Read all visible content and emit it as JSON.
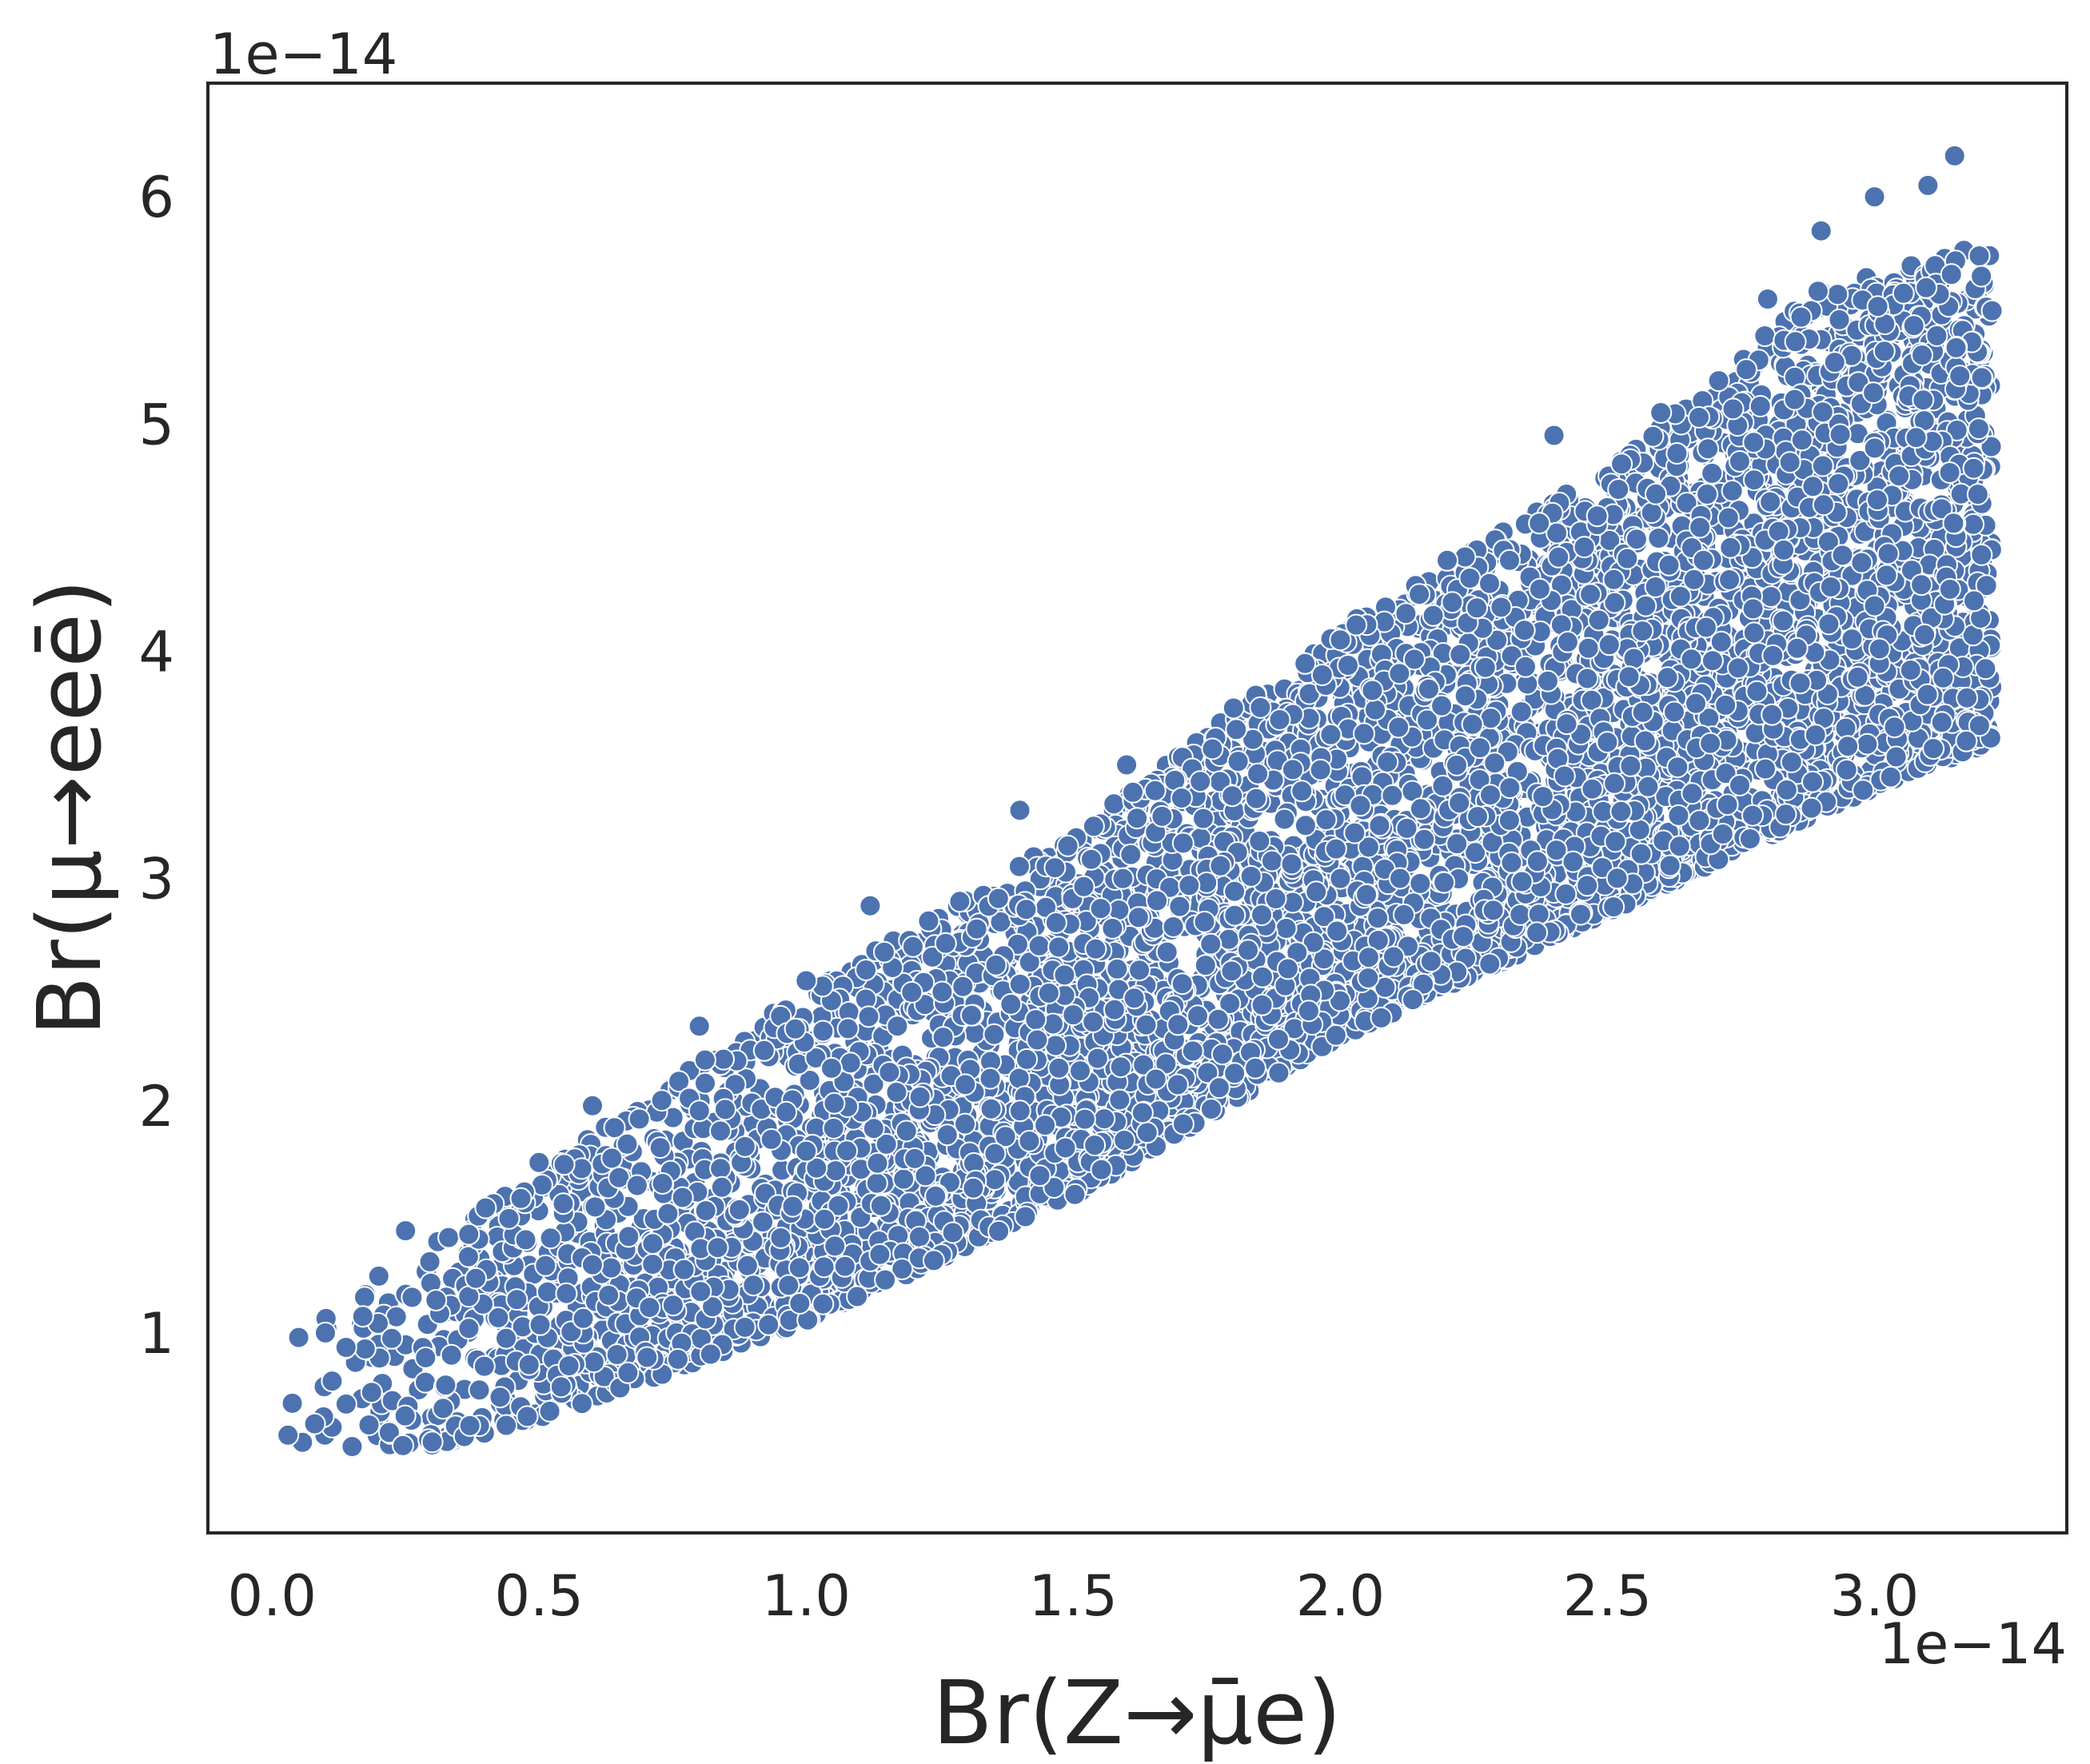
{
  "chart_data": {
    "type": "scatter",
    "xlabel": "Br(Z→μ̄e)",
    "ylabel": "Br(μ→eeē)",
    "x_offset_label": "1e−14",
    "y_offset_label": "1e−14",
    "x_scale": 1e-14,
    "y_scale": 1e-14,
    "xlim": [
      -0.12,
      3.36
    ],
    "ylim": [
      0.12,
      6.5
    ],
    "x_ticks": [
      0.0,
      0.5,
      1.0,
      1.5,
      2.0,
      2.5,
      3.0
    ],
    "x_tick_labels": [
      "0.0",
      "0.5",
      "1.0",
      "1.5",
      "2.0",
      "2.5",
      "3.0"
    ],
    "y_ticks": [
      1,
      2,
      3,
      4,
      5,
      6
    ],
    "y_tick_labels": [
      "1",
      "2",
      "3",
      "4",
      "5",
      "6"
    ],
    "grid": false,
    "legend": "none",
    "marker_color": "#4c72b0",
    "marker_edge_color": "#ffffff",
    "series": [
      {
        "x": [
          0.03,
          0.05,
          0.08,
          0.1,
          0.15,
          0.2,
          0.25,
          0.3,
          0.4,
          0.5,
          0.6,
          0.8,
          1.0,
          1.12,
          1.2,
          1.4,
          1.6,
          1.8,
          2.0,
          2.2,
          2.4,
          2.6,
          2.8,
          2.9,
          3.0,
          3.1,
          3.15,
          3.2,
          0.6,
          1.0,
          1.5,
          2.0,
          2.5,
          3.0
        ],
        "y": [
          0.55,
          0.98,
          0.6,
          1.0,
          0.5,
          1.25,
          1.45,
          0.52,
          1.55,
          1.75,
          2.0,
          2.35,
          2.55,
          2.88,
          2.7,
          3.3,
          3.5,
          3.75,
          4.05,
          4.4,
          4.95,
          5.05,
          5.55,
          5.85,
          6.0,
          6.05,
          6.18,
          5.65,
          1.3,
          1.8,
          2.4,
          3.0,
          3.6,
          4.2
        ]
      }
    ],
    "scatter_band": {
      "x_range": [
        0.03,
        3.22
      ],
      "lower_edge": [
        [
          0.03,
          0.5
        ],
        [
          0.3,
          0.5
        ],
        [
          0.5,
          0.62
        ],
        [
          1.0,
          1.05
        ],
        [
          1.5,
          1.6
        ],
        [
          2.0,
          2.3
        ],
        [
          2.5,
          2.85
        ],
        [
          3.0,
          3.4
        ],
        [
          3.22,
          3.6
        ]
      ],
      "upper_edge": [
        [
          0.03,
          0.95
        ],
        [
          0.3,
          1.4
        ],
        [
          0.5,
          1.7
        ],
        [
          0.8,
          2.2
        ],
        [
          1.0,
          2.5
        ],
        [
          1.5,
          3.2
        ],
        [
          2.0,
          4.1
        ],
        [
          2.5,
          4.8
        ],
        [
          2.9,
          5.6
        ],
        [
          3.22,
          5.8
        ]
      ]
    }
  }
}
